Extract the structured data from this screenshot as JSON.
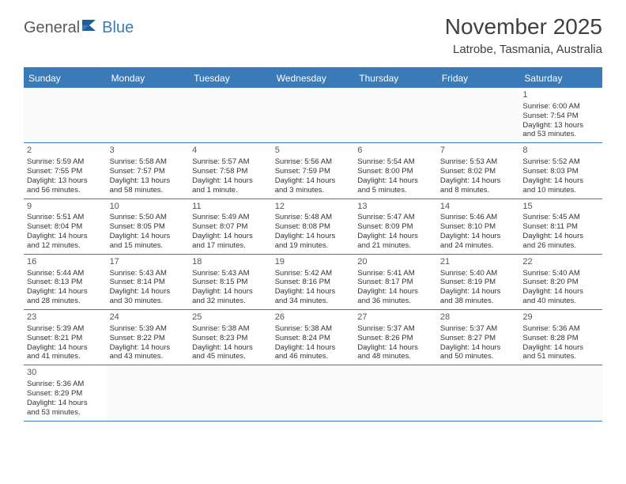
{
  "logo": {
    "part1": "General",
    "part2": "Blue"
  },
  "header": {
    "month_title": "November 2025",
    "location": "Latrobe, Tasmania, Australia"
  },
  "colors": {
    "primary": "#3a7ab8",
    "header_text": "#ffffff",
    "text": "#333333",
    "title_text": "#404040",
    "logo_gray": "#5a5a5a"
  },
  "weekdays": [
    "Sunday",
    "Monday",
    "Tuesday",
    "Wednesday",
    "Thursday",
    "Friday",
    "Saturday"
  ],
  "weeks": [
    [
      null,
      null,
      null,
      null,
      null,
      null,
      {
        "n": "1",
        "sr": "Sunrise: 6:00 AM",
        "ss": "Sunset: 7:54 PM",
        "dl1": "Daylight: 13 hours",
        "dl2": "and 53 minutes."
      }
    ],
    [
      {
        "n": "2",
        "sr": "Sunrise: 5:59 AM",
        "ss": "Sunset: 7:55 PM",
        "dl1": "Daylight: 13 hours",
        "dl2": "and 56 minutes."
      },
      {
        "n": "3",
        "sr": "Sunrise: 5:58 AM",
        "ss": "Sunset: 7:57 PM",
        "dl1": "Daylight: 13 hours",
        "dl2": "and 58 minutes."
      },
      {
        "n": "4",
        "sr": "Sunrise: 5:57 AM",
        "ss": "Sunset: 7:58 PM",
        "dl1": "Daylight: 14 hours",
        "dl2": "and 1 minute."
      },
      {
        "n": "5",
        "sr": "Sunrise: 5:56 AM",
        "ss": "Sunset: 7:59 PM",
        "dl1": "Daylight: 14 hours",
        "dl2": "and 3 minutes."
      },
      {
        "n": "6",
        "sr": "Sunrise: 5:54 AM",
        "ss": "Sunset: 8:00 PM",
        "dl1": "Daylight: 14 hours",
        "dl2": "and 5 minutes."
      },
      {
        "n": "7",
        "sr": "Sunrise: 5:53 AM",
        "ss": "Sunset: 8:02 PM",
        "dl1": "Daylight: 14 hours",
        "dl2": "and 8 minutes."
      },
      {
        "n": "8",
        "sr": "Sunrise: 5:52 AM",
        "ss": "Sunset: 8:03 PM",
        "dl1": "Daylight: 14 hours",
        "dl2": "and 10 minutes."
      }
    ],
    [
      {
        "n": "9",
        "sr": "Sunrise: 5:51 AM",
        "ss": "Sunset: 8:04 PM",
        "dl1": "Daylight: 14 hours",
        "dl2": "and 12 minutes."
      },
      {
        "n": "10",
        "sr": "Sunrise: 5:50 AM",
        "ss": "Sunset: 8:05 PM",
        "dl1": "Daylight: 14 hours",
        "dl2": "and 15 minutes."
      },
      {
        "n": "11",
        "sr": "Sunrise: 5:49 AM",
        "ss": "Sunset: 8:07 PM",
        "dl1": "Daylight: 14 hours",
        "dl2": "and 17 minutes."
      },
      {
        "n": "12",
        "sr": "Sunrise: 5:48 AM",
        "ss": "Sunset: 8:08 PM",
        "dl1": "Daylight: 14 hours",
        "dl2": "and 19 minutes."
      },
      {
        "n": "13",
        "sr": "Sunrise: 5:47 AM",
        "ss": "Sunset: 8:09 PM",
        "dl1": "Daylight: 14 hours",
        "dl2": "and 21 minutes."
      },
      {
        "n": "14",
        "sr": "Sunrise: 5:46 AM",
        "ss": "Sunset: 8:10 PM",
        "dl1": "Daylight: 14 hours",
        "dl2": "and 24 minutes."
      },
      {
        "n": "15",
        "sr": "Sunrise: 5:45 AM",
        "ss": "Sunset: 8:11 PM",
        "dl1": "Daylight: 14 hours",
        "dl2": "and 26 minutes."
      }
    ],
    [
      {
        "n": "16",
        "sr": "Sunrise: 5:44 AM",
        "ss": "Sunset: 8:13 PM",
        "dl1": "Daylight: 14 hours",
        "dl2": "and 28 minutes."
      },
      {
        "n": "17",
        "sr": "Sunrise: 5:43 AM",
        "ss": "Sunset: 8:14 PM",
        "dl1": "Daylight: 14 hours",
        "dl2": "and 30 minutes."
      },
      {
        "n": "18",
        "sr": "Sunrise: 5:43 AM",
        "ss": "Sunset: 8:15 PM",
        "dl1": "Daylight: 14 hours",
        "dl2": "and 32 minutes."
      },
      {
        "n": "19",
        "sr": "Sunrise: 5:42 AM",
        "ss": "Sunset: 8:16 PM",
        "dl1": "Daylight: 14 hours",
        "dl2": "and 34 minutes."
      },
      {
        "n": "20",
        "sr": "Sunrise: 5:41 AM",
        "ss": "Sunset: 8:17 PM",
        "dl1": "Daylight: 14 hours",
        "dl2": "and 36 minutes."
      },
      {
        "n": "21",
        "sr": "Sunrise: 5:40 AM",
        "ss": "Sunset: 8:19 PM",
        "dl1": "Daylight: 14 hours",
        "dl2": "and 38 minutes."
      },
      {
        "n": "22",
        "sr": "Sunrise: 5:40 AM",
        "ss": "Sunset: 8:20 PM",
        "dl1": "Daylight: 14 hours",
        "dl2": "and 40 minutes."
      }
    ],
    [
      {
        "n": "23",
        "sr": "Sunrise: 5:39 AM",
        "ss": "Sunset: 8:21 PM",
        "dl1": "Daylight: 14 hours",
        "dl2": "and 41 minutes."
      },
      {
        "n": "24",
        "sr": "Sunrise: 5:39 AM",
        "ss": "Sunset: 8:22 PM",
        "dl1": "Daylight: 14 hours",
        "dl2": "and 43 minutes."
      },
      {
        "n": "25",
        "sr": "Sunrise: 5:38 AM",
        "ss": "Sunset: 8:23 PM",
        "dl1": "Daylight: 14 hours",
        "dl2": "and 45 minutes."
      },
      {
        "n": "26",
        "sr": "Sunrise: 5:38 AM",
        "ss": "Sunset: 8:24 PM",
        "dl1": "Daylight: 14 hours",
        "dl2": "and 46 minutes."
      },
      {
        "n": "27",
        "sr": "Sunrise: 5:37 AM",
        "ss": "Sunset: 8:26 PM",
        "dl1": "Daylight: 14 hours",
        "dl2": "and 48 minutes."
      },
      {
        "n": "28",
        "sr": "Sunrise: 5:37 AM",
        "ss": "Sunset: 8:27 PM",
        "dl1": "Daylight: 14 hours",
        "dl2": "and 50 minutes."
      },
      {
        "n": "29",
        "sr": "Sunrise: 5:36 AM",
        "ss": "Sunset: 8:28 PM",
        "dl1": "Daylight: 14 hours",
        "dl2": "and 51 minutes."
      }
    ],
    [
      {
        "n": "30",
        "sr": "Sunrise: 5:36 AM",
        "ss": "Sunset: 8:29 PM",
        "dl1": "Daylight: 14 hours",
        "dl2": "and 53 minutes."
      },
      null,
      null,
      null,
      null,
      null,
      null
    ]
  ]
}
